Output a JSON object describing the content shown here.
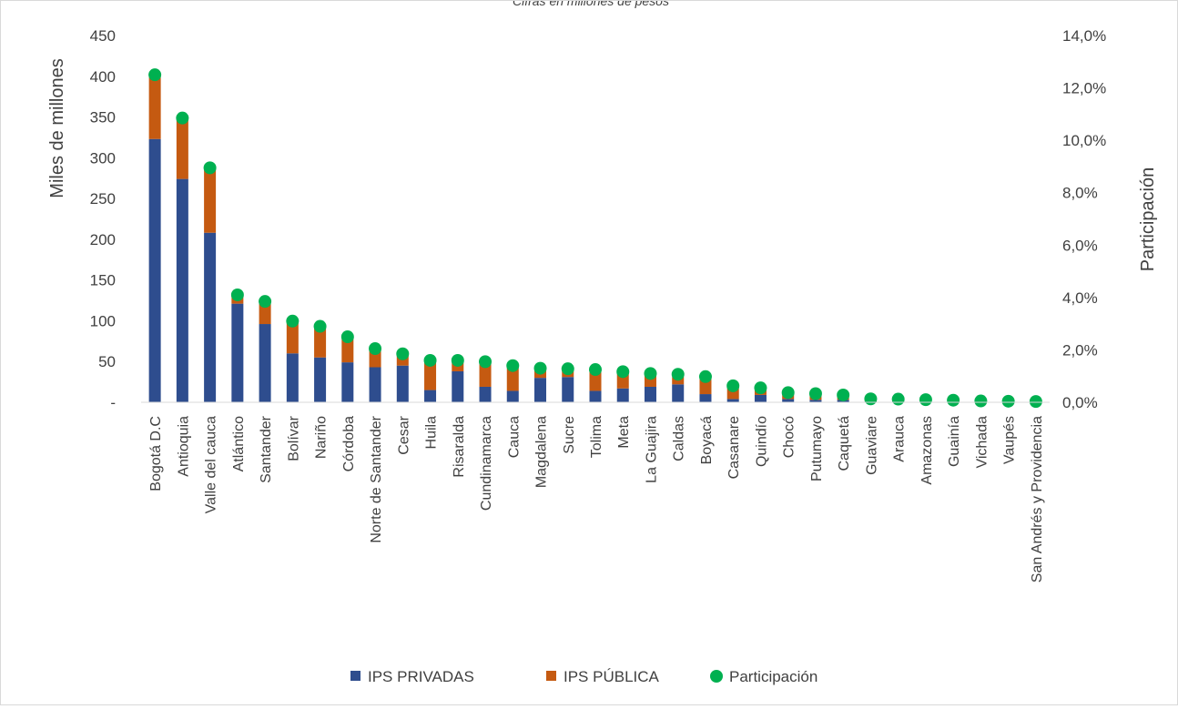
{
  "chart_data": {
    "type": "bar",
    "stacked": true,
    "title": "Cifras en millones de pesos",
    "categories": [
      "Bogotá D.C",
      "Antioquia",
      "Valle del cauca",
      "Atlántico",
      "Santander",
      "Bolívar",
      "Nariño",
      "Córdoba",
      "Norte de Santander",
      "Cesar",
      "Huila",
      "Risaralda",
      "Cundinamarca",
      "Cauca",
      "Magdalena",
      "Sucre",
      "Tolima",
      "Meta",
      "La Guajira",
      "Caldas",
      "Boyacá",
      "Casanare",
      "Quindío",
      "Chocó",
      "Putumayo",
      "Caquetá",
      "Guaviare",
      "Arauca",
      "Amazonas",
      "Guainía",
      "Vichada",
      "Vaupés",
      "San Andrés y Providencia"
    ],
    "series": [
      {
        "name": "IPS PRIVADAS",
        "axis": "left",
        "color": "#2e4d8e",
        "values": [
          323,
          274,
          208,
          121,
          96,
          60,
          55,
          49,
          43,
          45,
          15,
          38,
          19,
          14,
          30,
          31,
          14,
          17,
          19,
          22,
          10,
          4,
          9,
          4,
          3,
          3,
          1,
          1,
          1,
          1,
          0.5,
          0.5,
          0.5
        ]
      },
      {
        "name": "IPS PÚBLICA",
        "axis": "left",
        "color": "#c55a11",
        "values": [
          80,
          75,
          80,
          12,
          25,
          40,
          37,
          31,
          22,
          13,
          36,
          12,
          31,
          32,
          12,
          10,
          27,
          20,
          16,
          9,
          22,
          15,
          6,
          8,
          5,
          5,
          3,
          3,
          3,
          2,
          1,
          1,
          1
        ]
      },
      {
        "name": "Participación",
        "axis": "right",
        "type": "scatter",
        "color": "#00b050",
        "values": [
          12.5,
          10.85,
          8.95,
          4.1,
          3.85,
          3.1,
          2.9,
          2.5,
          2.05,
          1.85,
          1.6,
          1.6,
          1.55,
          1.4,
          1.3,
          1.28,
          1.25,
          1.17,
          1.1,
          1.07,
          0.98,
          0.63,
          0.55,
          0.37,
          0.33,
          0.28,
          0.13,
          0.12,
          0.1,
          0.08,
          0.05,
          0.04,
          0.03
        ]
      }
    ],
    "ylabel": "Miles de millones",
    "ylabel_right": "Participación",
    "ylim": [
      0,
      450
    ],
    "ylim_right": [
      0,
      14
    ],
    "yticks": [
      "-",
      "50",
      "100",
      "150",
      "200",
      "250",
      "300",
      "350",
      "400",
      "450"
    ],
    "yticks_right": [
      "0,0%",
      "2,0%",
      "4,0%",
      "6,0%",
      "8,0%",
      "10,0%",
      "12,0%",
      "14,0%"
    ],
    "grid": false,
    "legend_position": "bottom"
  }
}
